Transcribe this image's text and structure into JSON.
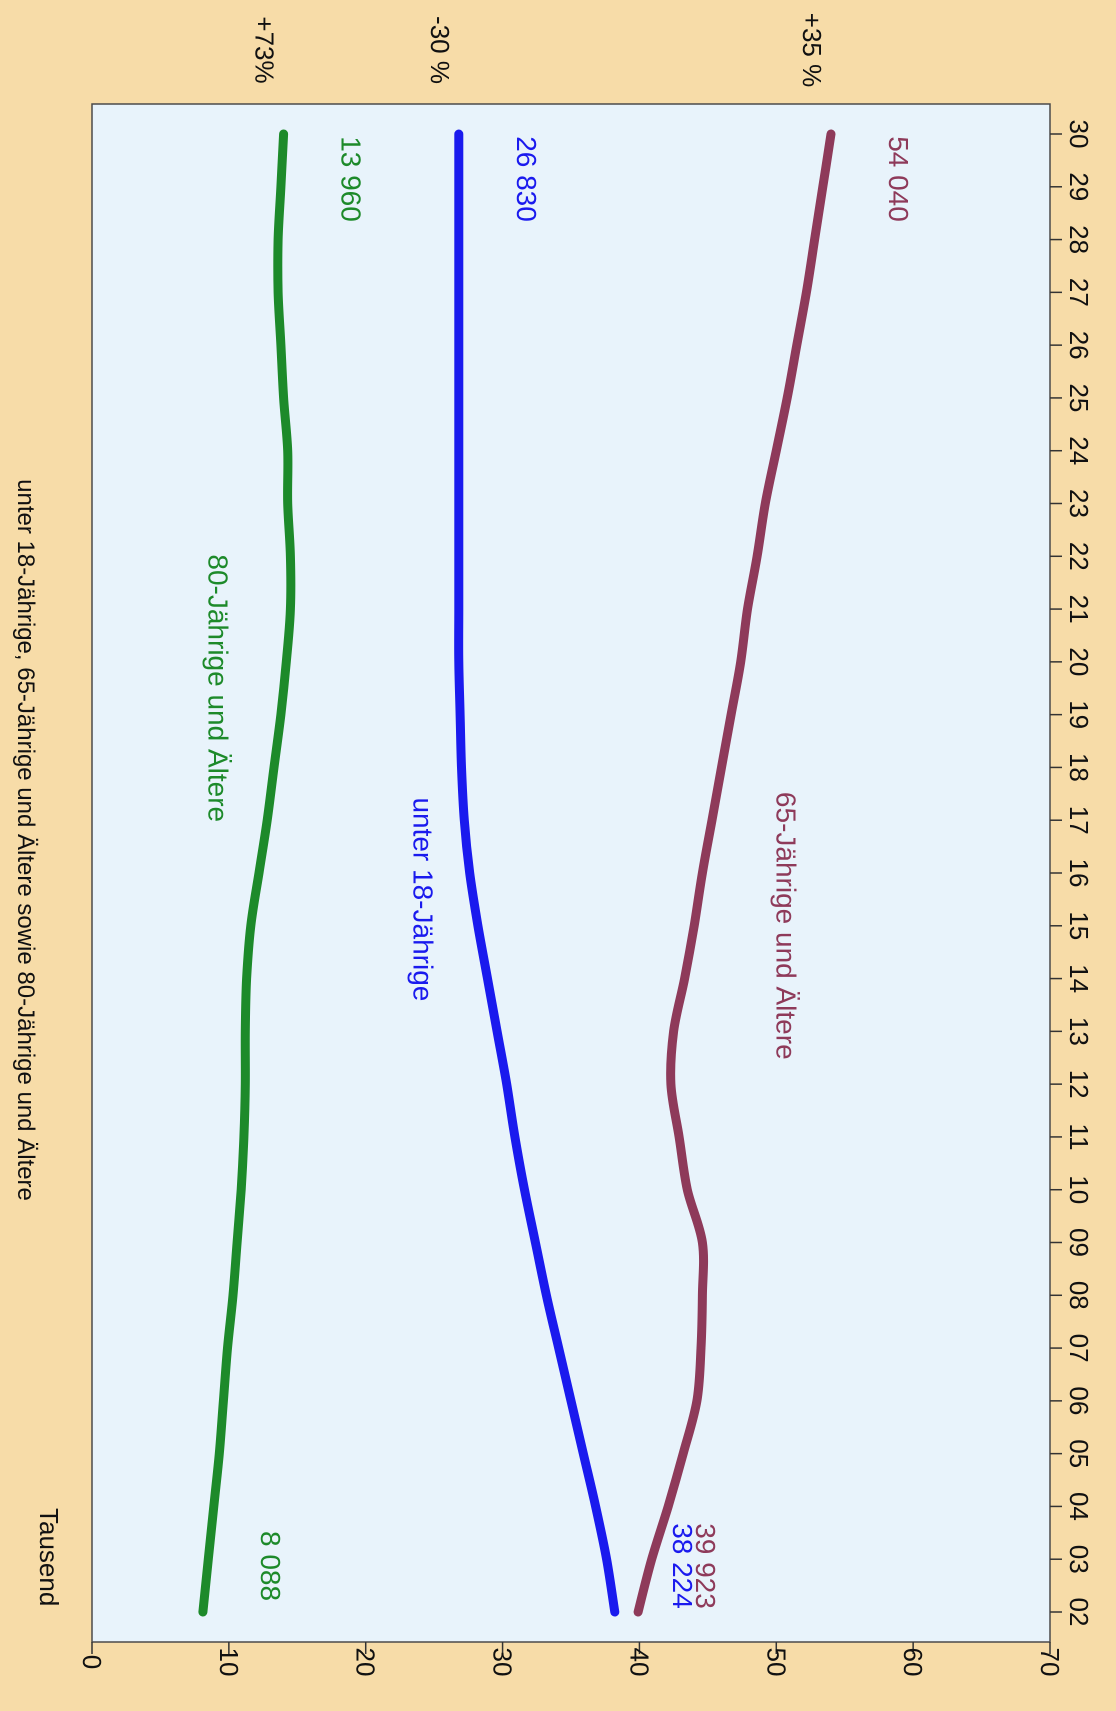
{
  "chart_data": {
    "type": "line",
    "title": "unter 18-Jährige, 65-Jährige und Ältere sowie 80-Jährige und Ältere",
    "unit_label": "Tausend",
    "ylim": [
      0,
      70
    ],
    "yticks": [
      0,
      10,
      20,
      30,
      40,
      50,
      60,
      70
    ],
    "xlim": [
      2002,
      2030
    ],
    "x": [
      2002,
      2003,
      2004,
      2005,
      2006,
      2007,
      2008,
      2009,
      2010,
      2011,
      2012,
      2013,
      2014,
      2015,
      2016,
      2017,
      2018,
      2019,
      2020,
      2021,
      2022,
      2023,
      2024,
      2025,
      2026,
      2027,
      2028,
      2029,
      2030
    ],
    "xtick_labels": [
      "02",
      "03",
      "04",
      "05",
      "06",
      "07",
      "08",
      "09",
      "10",
      "11",
      "12",
      "13",
      "14",
      "15",
      "16",
      "17",
      "18",
      "19",
      "20",
      "21",
      "22",
      "23",
      "24",
      "25",
      "26",
      "27",
      "28",
      "29",
      "30"
    ],
    "colors": {
      "plot_bg": "#e8f3fb",
      "page_bg": "#f7dca8"
    },
    "series": [
      {
        "name": "65-Jährige und Ältere",
        "color": "#8e3a5a",
        "values": [
          39.9,
          40.9,
          42.1,
          43.2,
          44.2,
          44.5,
          44.6,
          44.6,
          43.5,
          42.9,
          42.3,
          42.5,
          43.3,
          44.0,
          44.6,
          45.3,
          46.0,
          46.7,
          47.4,
          47.9,
          48.6,
          49.2,
          50.0,
          50.8,
          51.5,
          52.2,
          52.8,
          53.4,
          54.0
        ],
        "start_label": "39 923",
        "end_label": "54 040",
        "change_label": "+35 %"
      },
      {
        "name": "unter 18-Jährige",
        "color": "#1a1aee",
        "values": [
          38.2,
          37.6,
          36.8,
          35.9,
          35.0,
          34.1,
          33.2,
          32.4,
          31.6,
          30.9,
          30.3,
          29.6,
          28.9,
          28.2,
          27.6,
          27.2,
          27.0,
          26.9,
          26.8,
          26.8,
          26.8,
          26.8,
          26.8,
          26.8,
          26.8,
          26.8,
          26.8,
          26.8,
          26.8
        ],
        "start_label": "38 224",
        "end_label": "26 830",
        "change_label": "-30 %"
      },
      {
        "name": "80-Jährige und Ältere",
        "color": "#1d8a2a",
        "values": [
          8.1,
          8.5,
          8.9,
          9.3,
          9.6,
          9.9,
          10.3,
          10.6,
          10.9,
          11.1,
          11.2,
          11.2,
          11.3,
          11.6,
          12.2,
          12.8,
          13.3,
          13.8,
          14.2,
          14.5,
          14.5,
          14.3,
          14.3,
          14.0,
          13.8,
          13.6,
          13.6,
          13.8,
          14.0
        ],
        "start_label": "8 088",
        "end_label": "13 960",
        "change_label": "+73%"
      }
    ]
  }
}
